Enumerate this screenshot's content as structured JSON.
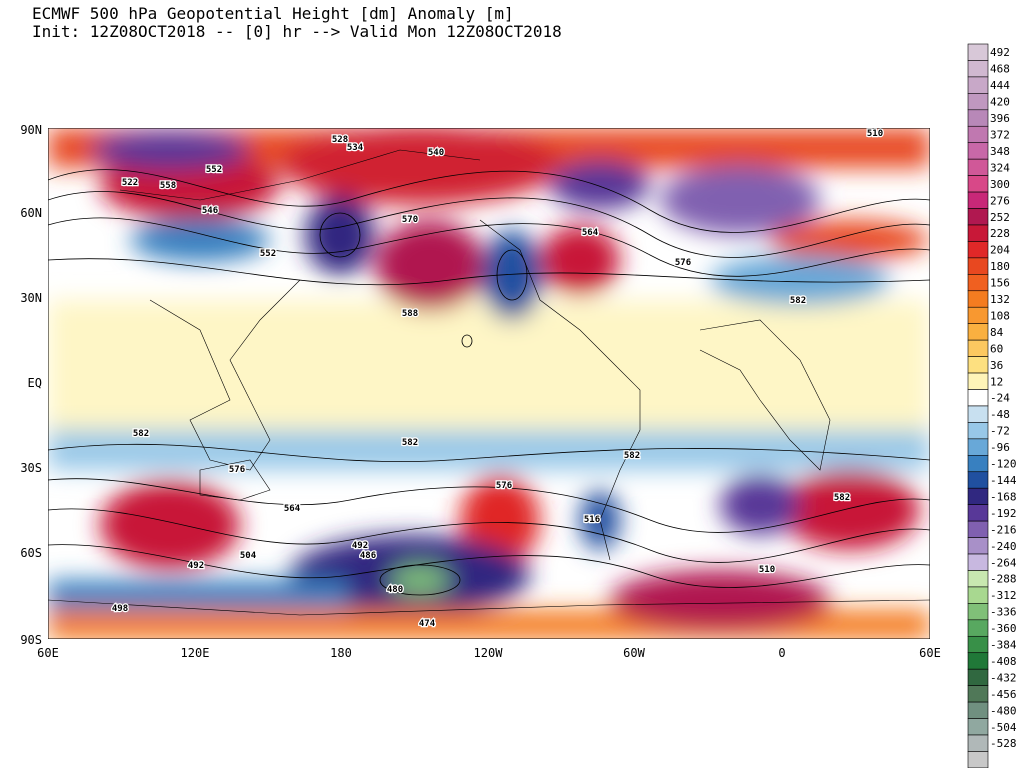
{
  "header": {
    "title": "ECMWF 500 hPa Geopotential Height [dm] Anomaly [m]",
    "subtitle": "Init: 12Z08OCT2018 -- [0] hr --> Valid Mon 12Z08OCT2018"
  },
  "map": {
    "lon_labels": [
      "60E",
      "120E",
      "180",
      "120W",
      "60W",
      "0",
      "60E"
    ],
    "lat_labels": [
      "90N",
      "60N",
      "30N",
      "EQ",
      "30S",
      "60S",
      "90S"
    ],
    "contour_labels": [
      "522",
      "528",
      "534",
      "540",
      "510",
      "552",
      "558",
      "546",
      "570",
      "576",
      "582",
      "588",
      "564",
      "516",
      "492",
      "498",
      "504",
      "486",
      "480",
      "474"
    ]
  },
  "colorbar": {
    "labels": [
      "492",
      "468",
      "444",
      "420",
      "396",
      "372",
      "348",
      "324",
      "300",
      "276",
      "252",
      "228",
      "204",
      "180",
      "156",
      "132",
      "108",
      "84",
      "60",
      "36",
      "12",
      "-24",
      "-48",
      "-72",
      "-96",
      "-120",
      "-144",
      "-168",
      "-192",
      "-216",
      "-240",
      "-264",
      "-288",
      "-312",
      "-336",
      "-360",
      "-384",
      "-408",
      "-432",
      "-456",
      "-480",
      "-504",
      "-528"
    ],
    "colors": [
      "#d8c8d8",
      "#d0b8d0",
      "#c8a8c8",
      "#c098c0",
      "#b888b8",
      "#c078b0",
      "#c868a8",
      "#d05898",
      "#d84888",
      "#c82878",
      "#b01850",
      "#c81838",
      "#e02828",
      "#e84820",
      "#f06020",
      "#f47c20",
      "#f89830",
      "#fab040",
      "#fcc860",
      "#fde080",
      "#fef4b8",
      "#ffffff",
      "#c8e0f0",
      "#98c8e8",
      "#68a8d8",
      "#3880c0",
      "#2050a0",
      "#302880",
      "#583898",
      "#8060b0",
      "#a890c8",
      "#c8b8e0",
      "#c8e8b0",
      "#a8d890",
      "#80c078",
      "#58a860",
      "#389048",
      "#207838",
      "#306840",
      "#507858",
      "#709080",
      "#90a8a0",
      "#b0b8b8",
      "#c8c8c8"
    ]
  }
}
